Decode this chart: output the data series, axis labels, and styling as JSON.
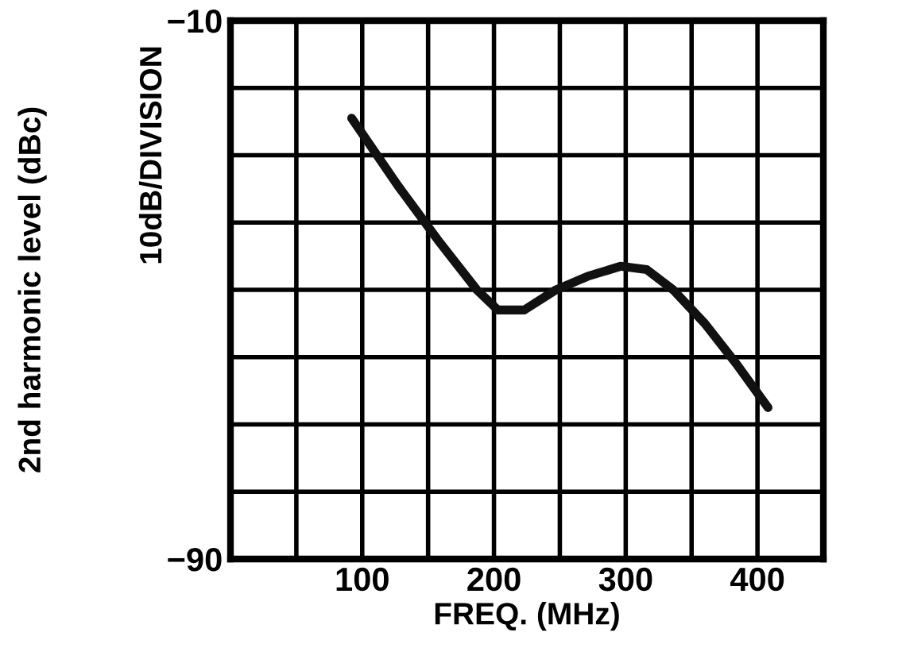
{
  "chart_data": {
    "type": "line",
    "xlabel": "FREQ. (MHz)",
    "ylabel": "2nd harmonic level (dBc)",
    "annotations": [
      "10dB/DIVISION"
    ],
    "x": [
      92,
      127,
      159,
      187,
      203,
      223,
      247,
      271,
      296,
      316,
      336,
      360,
      384,
      408
    ],
    "series": [
      {
        "color": "#111111",
        "values": [
          -24.5,
          -34.5,
          -43,
          -50,
          -53,
          -53,
          -50,
          -48,
          -46.5,
          -47,
          -50,
          -55,
          -61,
          -67.5
        ]
      }
    ],
    "xlim": [
      0,
      450
    ],
    "xticks": [
      {
        "value": 0,
        "label": null
      },
      {
        "value": 50,
        "label": null
      },
      100,
      {
        "value": 150,
        "label": null
      },
      200,
      {
        "value": 250,
        "label": null
      },
      300,
      {
        "value": 350,
        "label": null
      },
      400,
      {
        "value": 450,
        "label": null
      }
    ],
    "ylim": [
      -90,
      -10
    ],
    "yticks": [
      -90,
      {
        "value": -80,
        "label": null
      },
      {
        "value": -70,
        "label": null
      },
      {
        "value": -60,
        "label": null
      },
      {
        "value": -50,
        "label": null
      },
      {
        "value": -40,
        "label": null
      },
      {
        "value": -30,
        "label": null
      },
      {
        "value": -20,
        "label": null
      },
      -10
    ],
    "grid": true,
    "legend": false,
    "marker": "none",
    "line_style": "solid"
  }
}
